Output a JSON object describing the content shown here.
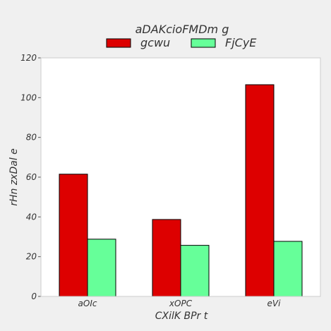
{
  "chart_data": {
    "type": "bar",
    "categories": [
      "aOIc",
      "xOPC",
      "eVi"
    ],
    "series": [
      {
        "name": "gcwu",
        "values": [
          61.5,
          38.7,
          106.5
        ],
        "color": "#dd0000"
      },
      {
        "name": "FjCyE",
        "values": [
          28.8,
          25.7,
          27.7
        ],
        "color": "#66ff99"
      }
    ],
    "xlabel": "CXilK BPr   t",
    "ylabel": "rHn zxDal e",
    "legend_title": "aDAKcioFMDm g",
    "legend_placement": "top-center",
    "ylim": [
      0,
      120
    ],
    "yticks": [
      0,
      20,
      40,
      60,
      80,
      100,
      120
    ],
    "grid": false,
    "plot_background": "#ffffff",
    "figure_background": "#f0f0f0"
  }
}
